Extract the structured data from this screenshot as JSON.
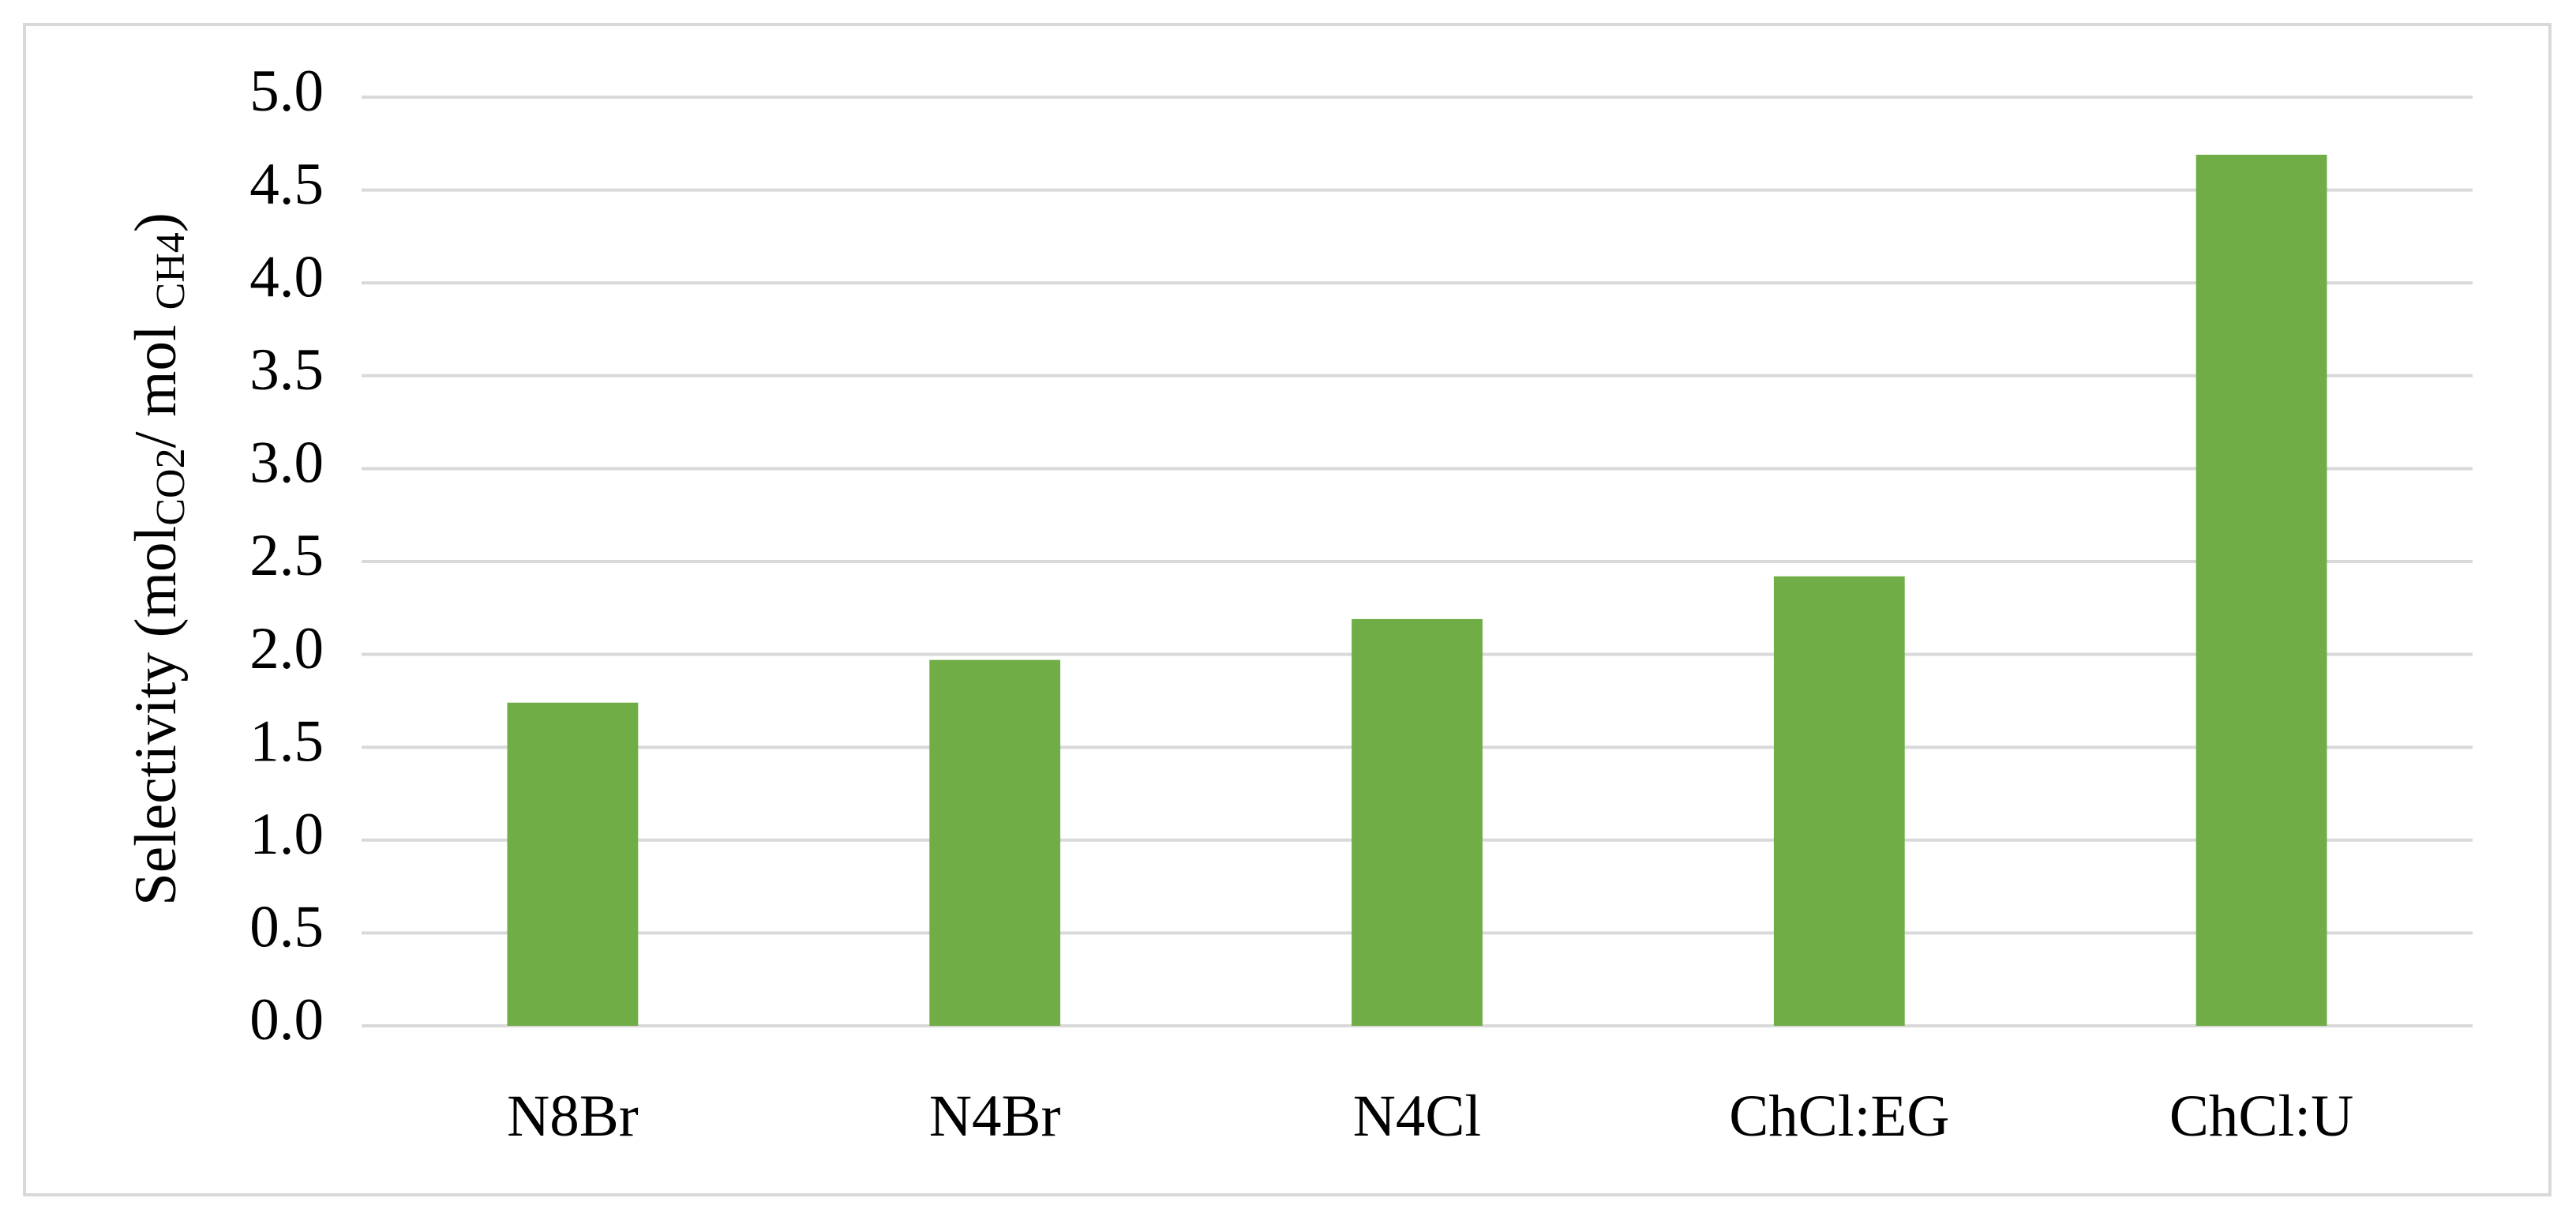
{
  "chart_data": {
    "type": "bar",
    "y_label": {
      "parts": [
        "Selectivity (mol",
        "CO2",
        "/ mol ",
        "CH4",
        ")"
      ]
    },
    "categories": [
      "N8Br",
      "N4Br",
      "N4Cl",
      "ChCl:EG",
      "ChCl:U"
    ],
    "values": [
      1.74,
      1.97,
      2.19,
      2.42,
      4.69
    ],
    "color": "#70ad47",
    "ylim": [
      0,
      5
    ],
    "yticks": [
      {
        "value": 0,
        "label": "0.0"
      },
      {
        "value": 0.5,
        "label": "0.5"
      },
      {
        "value": 1,
        "label": "1.0"
      },
      {
        "value": 1.5,
        "label": "1.5"
      },
      {
        "value": 2,
        "label": "2.0"
      },
      {
        "value": 2.5,
        "label": "2.5"
      },
      {
        "value": 3,
        "label": "3.0"
      },
      {
        "value": 3.5,
        "label": "3.5"
      },
      {
        "value": 4,
        "label": "4.0"
      },
      {
        "value": 4.5,
        "label": "4.5"
      },
      {
        "value": 5,
        "label": "5.0"
      }
    ],
    "grid": true
  }
}
